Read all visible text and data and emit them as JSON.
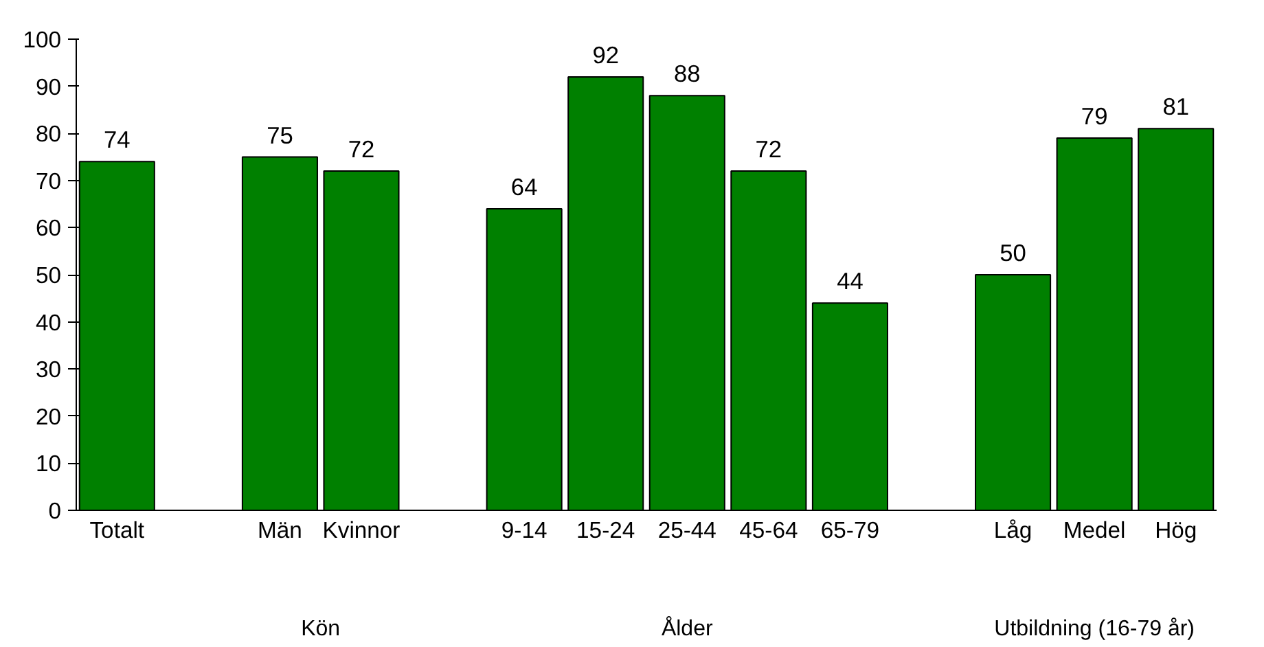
{
  "chart_data": {
    "type": "bar",
    "categories": [
      "Totalt",
      null,
      "Män",
      "Kvinnor",
      null,
      "9-14",
      "15-24",
      "25-44",
      "45-64",
      "65-79",
      null,
      "Låg",
      "Medel",
      "Hög"
    ],
    "values": [
      74,
      null,
      75,
      72,
      null,
      64,
      92,
      88,
      72,
      44,
      null,
      50,
      79,
      81
    ],
    "color": "#008000",
    "ylim": [
      0,
      100
    ],
    "yticks": [
      0,
      10,
      20,
      30,
      40,
      50,
      60,
      70,
      80,
      90,
      100
    ],
    "grid": false,
    "data_labels": true,
    "annotations": [
      "Kön",
      "Ålder",
      "Utbildning (16-79 år)"
    ]
  }
}
